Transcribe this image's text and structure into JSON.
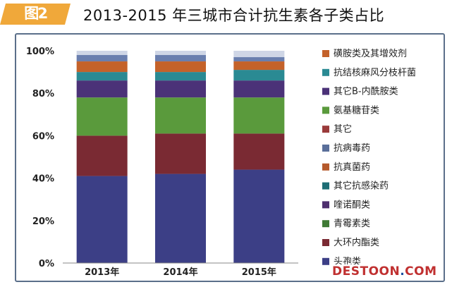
{
  "header": {
    "figure_label": "图2",
    "title": "2013-2015 年三城市合计抗生素各子类占比"
  },
  "chart_data": {
    "type": "bar",
    "stacked": true,
    "title": "2013-2015 年三城市合计抗生素各子类占比",
    "xlabel": "",
    "ylabel": "",
    "ylim": [
      0,
      100
    ],
    "yticks": [
      "0%",
      "20%",
      "40%",
      "60%",
      "80%",
      "100%"
    ],
    "categories": [
      "2013年",
      "2014年",
      "2015年"
    ],
    "grid": false,
    "legend_position": "right",
    "series": [
      {
        "name": "头孢类",
        "color": "#3c3f86",
        "values": [
          41,
          42,
          44
        ]
      },
      {
        "name": "大环内酯类",
        "color": "#7a2a33",
        "values": [
          19,
          19,
          17
        ]
      },
      {
        "name": "青霉素类",
        "color": "#3f7a35",
        "values": [
          0,
          0,
          0
        ]
      },
      {
        "name": "喹诺酮类",
        "color": "#4e2f6e",
        "values": [
          0,
          0,
          0
        ]
      },
      {
        "name": "其它抗感染药",
        "color": "#1d6d75",
        "values": [
          0,
          0,
          0
        ]
      },
      {
        "name": "抗真菌药",
        "color": "#b55a2c",
        "values": [
          0,
          0,
          0
        ]
      },
      {
        "name": "抗病毒药",
        "color": "#5a6f9a",
        "values": [
          0,
          0,
          0
        ]
      },
      {
        "name": "其它",
        "color": "#9a3a3a",
        "values": [
          0,
          0,
          0
        ]
      },
      {
        "name": "氨基糖苷类",
        "color": "#5a9a3c",
        "values": [
          18,
          17,
          17
        ]
      },
      {
        "name": "其它B-内酰胺类",
        "color": "#4b3278",
        "values": [
          8,
          8,
          8
        ]
      },
      {
        "name": "抗结核麻风分枝杆菌",
        "color": "#2a8a93",
        "values": [
          4,
          4,
          5
        ]
      },
      {
        "name": "磺胺类及其增效剂",
        "color": "#c4622a",
        "values": [
          5,
          5,
          4
        ]
      },
      {
        "name": "",
        "color": "#6a7fae",
        "values": [
          3,
          3,
          2
        ]
      },
      {
        "name": "",
        "color": "#cfd6e6",
        "values": [
          2,
          2,
          3
        ]
      }
    ],
    "legend_order": [
      "磺胺类及其增效剂",
      "抗结核麻风分枝杆菌",
      "其它B-内酰胺类",
      "氨基糖苷类",
      "其它",
      "抗病毒药",
      "抗真菌药",
      "其它抗感染药",
      "喹诺酮类",
      "青霉素类",
      "大环内酯类",
      "头孢类"
    ]
  },
  "watermark": {
    "before": "DESTOON",
    "dot": ".",
    "after": "COM"
  }
}
